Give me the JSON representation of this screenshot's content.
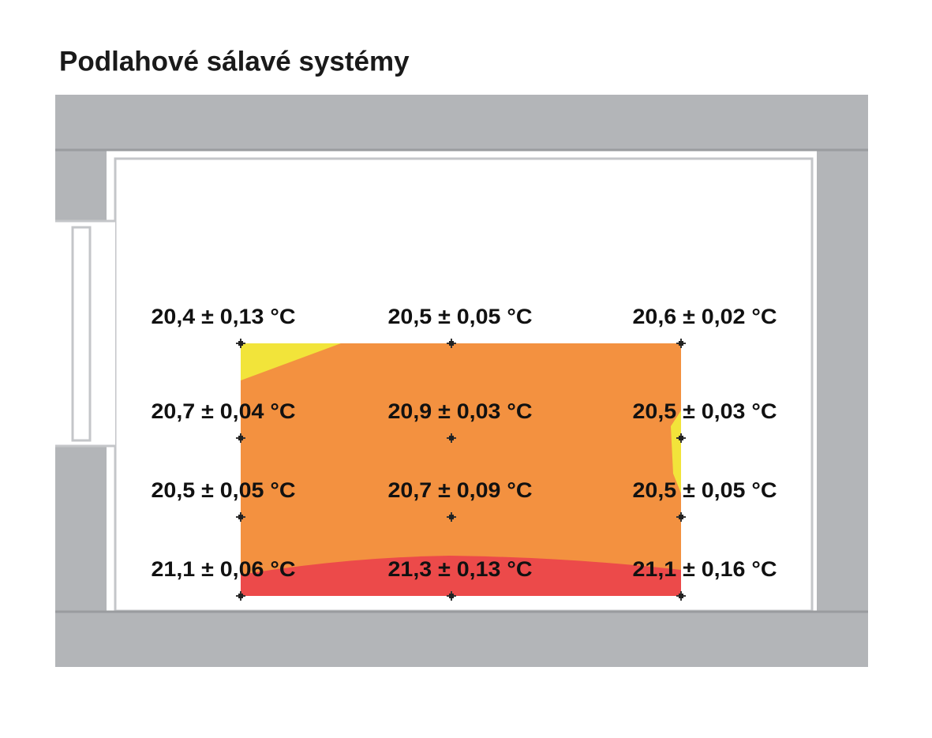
{
  "title": "Podlahové sálavé systémy",
  "measurements": [
    [
      "20,4 ± 0,13 °C",
      "20,5 ± 0,05 °C",
      "20,6 ± 0,02 °C"
    ],
    [
      "20,7 ± 0,04 °C",
      "20,9 ± 0,03 °C",
      "20,5 ± 0,03 °C"
    ],
    [
      "20,5 ± 0,05 °C",
      "20,7 ± 0,09 °C",
      "20,5 ± 0,05 °C"
    ],
    [
      "21,1 ± 0,06 °C",
      "21,3 ± 0,13 °C",
      "21,1 ± 0,16 °C"
    ]
  ]
}
